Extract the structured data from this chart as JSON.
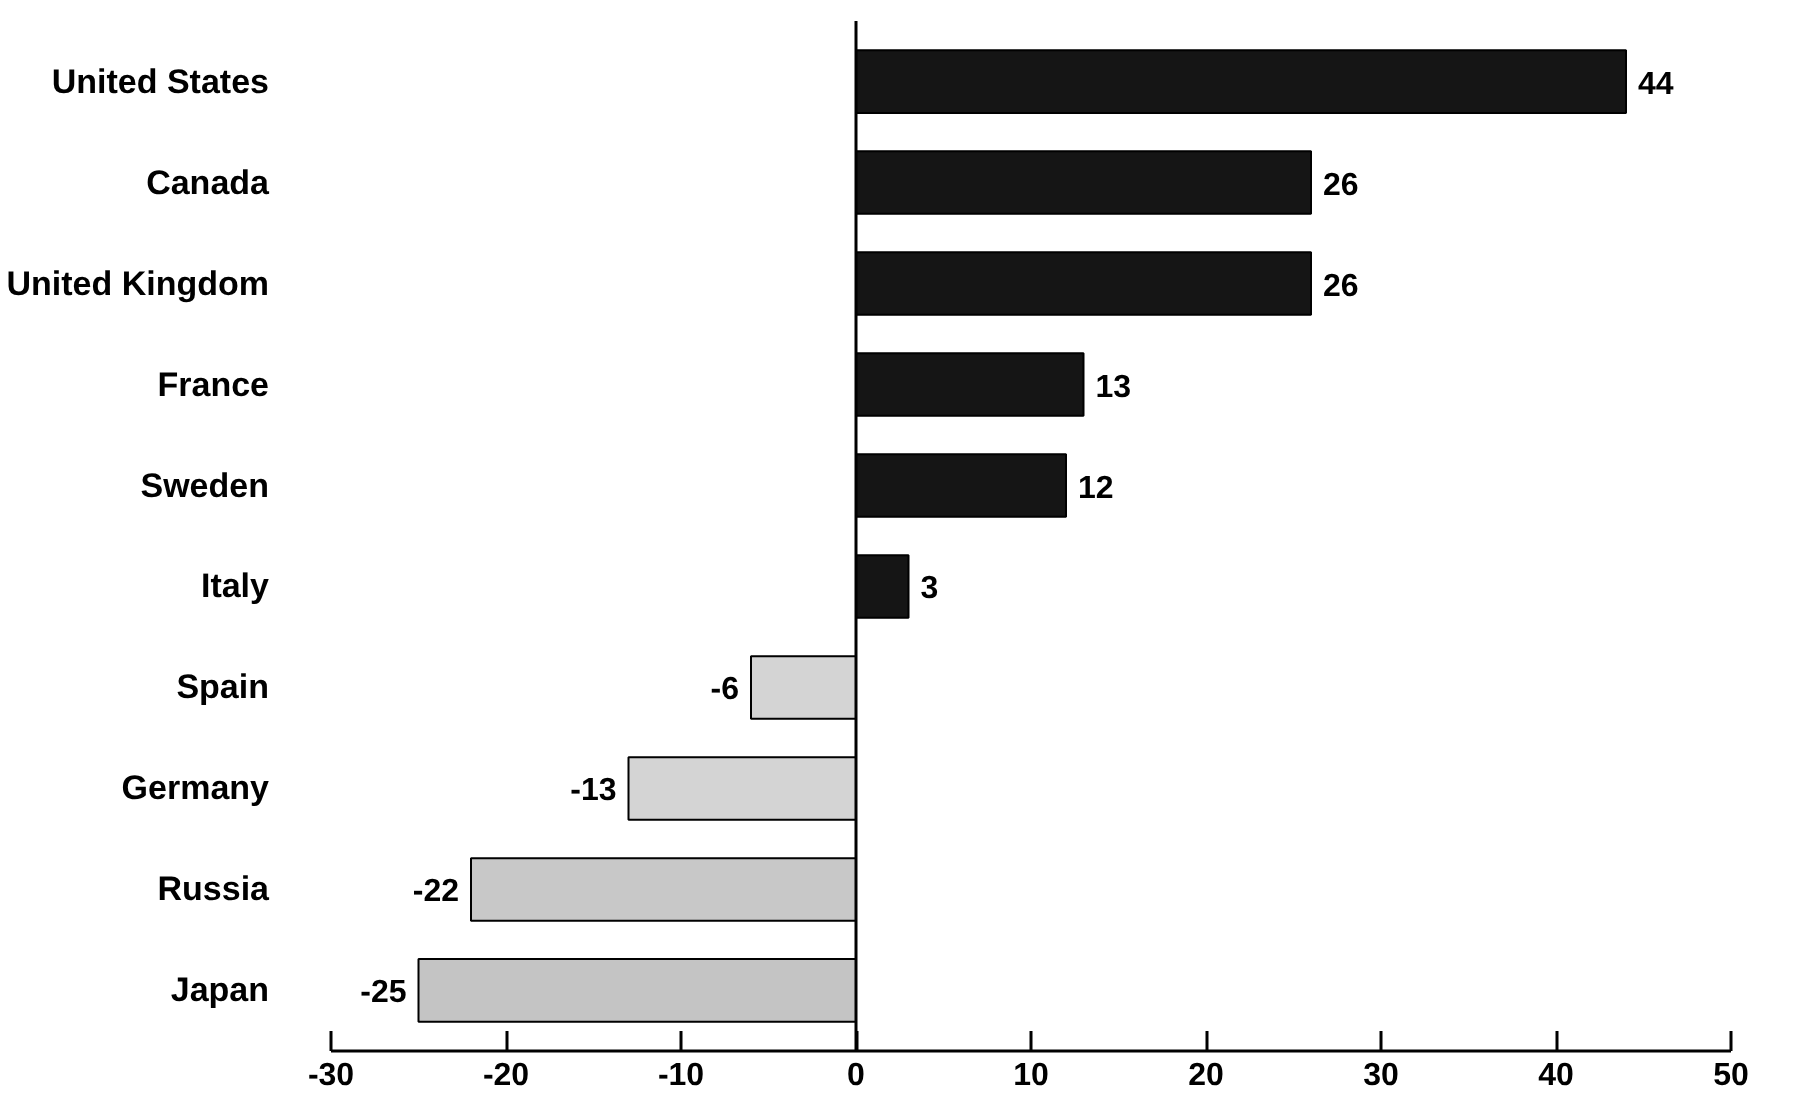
{
  "chart_data": {
    "type": "bar",
    "orientation": "horizontal",
    "categories": [
      "United States",
      "Canada",
      "United Kingdom",
      "France",
      "Sweden",
      "Italy",
      "Spain",
      "Germany",
      "Russia",
      "Japan"
    ],
    "values": [
      44,
      26,
      26,
      13,
      12,
      3,
      -6,
      -13,
      -22,
      -25
    ],
    "colors": [
      "#151515",
      "#151515",
      "#151515",
      "#151515",
      "#151515",
      "#151515",
      "#d4d4d4",
      "#d4d4d4",
      "#c8c8c8",
      "#c4c4c4"
    ],
    "xlim": [
      -30,
      50
    ],
    "xticks": [
      -30,
      -20,
      -10,
      0,
      10,
      20,
      30,
      40,
      50
    ],
    "data_labels": true
  }
}
